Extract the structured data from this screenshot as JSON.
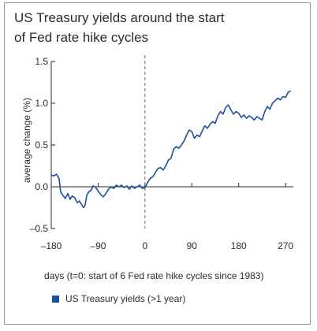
{
  "chart_data": {
    "type": "line",
    "title_lines": [
      "US Treasury yields around the start",
      "of Fed rate hike cycles"
    ],
    "xlabel": "days (t=0: start of 6 Fed rate hike cycles since 1983)",
    "ylabel": "average change (%)",
    "xlim": [
      -180,
      285
    ],
    "ylim": [
      -0.5,
      1.5
    ],
    "x_ticks": [
      -180,
      -90,
      0,
      90,
      180,
      270
    ],
    "x_tick_labels": [
      "–180",
      "–90",
      "0",
      "90",
      "180",
      "270"
    ],
    "y_ticks": [
      1.5,
      1.0,
      0.5,
      0.0,
      -0.5
    ],
    "y_tick_labels": [
      "1.5",
      "1.0",
      "0.5",
      "0.0",
      "–0.5"
    ],
    "legend_position": "bottom-left",
    "reference_line_x": 0,
    "series": [
      {
        "name": "US Treasury yields (>1 year)",
        "color": "#1f4e9a",
        "points": [
          [
            -180,
            0.14
          ],
          [
            -175,
            0.13
          ],
          [
            -170,
            0.15
          ],
          [
            -165,
            0.1
          ],
          [
            -162,
            -0.06
          ],
          [
            -158,
            -0.1
          ],
          [
            -153,
            -0.14
          ],
          [
            -148,
            -0.08
          ],
          [
            -144,
            -0.15
          ],
          [
            -140,
            -0.11
          ],
          [
            -135,
            -0.13
          ],
          [
            -130,
            -0.19
          ],
          [
            -126,
            -0.17
          ],
          [
            -122,
            -0.21
          ],
          [
            -118,
            -0.25
          ],
          [
            -115,
            -0.22
          ],
          [
            -112,
            -0.11
          ],
          [
            -108,
            -0.06
          ],
          [
            -103,
            -0.04
          ],
          [
            -100,
            0.01
          ],
          [
            -96,
            0.0
          ],
          [
            -92,
            -0.03
          ],
          [
            -88,
            -0.07
          ],
          [
            -84,
            -0.1
          ],
          [
            -80,
            -0.12
          ],
          [
            -75,
            -0.08
          ],
          [
            -70,
            -0.03
          ],
          [
            -65,
            0.0
          ],
          [
            -60,
            -0.02
          ],
          [
            -55,
            0.02
          ],
          [
            -50,
            0.0
          ],
          [
            -45,
            0.02
          ],
          [
            -40,
            -0.01
          ],
          [
            -35,
            0.01
          ],
          [
            -30,
            -0.03
          ],
          [
            -25,
            0.01
          ],
          [
            -20,
            -0.02
          ],
          [
            -15,
            0.0
          ],
          [
            -10,
            0.02
          ],
          [
            -5,
            -0.02
          ],
          [
            0,
            -0.01
          ],
          [
            5,
            0.05
          ],
          [
            10,
            0.1
          ],
          [
            15,
            0.12
          ],
          [
            20,
            0.17
          ],
          [
            25,
            0.22
          ],
          [
            30,
            0.23
          ],
          [
            35,
            0.2
          ],
          [
            40,
            0.25
          ],
          [
            45,
            0.32
          ],
          [
            50,
            0.34
          ],
          [
            55,
            0.45
          ],
          [
            60,
            0.48
          ],
          [
            65,
            0.46
          ],
          [
            70,
            0.5
          ],
          [
            75,
            0.55
          ],
          [
            80,
            0.62
          ],
          [
            85,
            0.68
          ],
          [
            90,
            0.66
          ],
          [
            95,
            0.58
          ],
          [
            100,
            0.62
          ],
          [
            105,
            0.6
          ],
          [
            110,
            0.67
          ],
          [
            115,
            0.73
          ],
          [
            120,
            0.7
          ],
          [
            125,
            0.75
          ],
          [
            130,
            0.78
          ],
          [
            135,
            0.76
          ],
          [
            140,
            0.85
          ],
          [
            145,
            0.9
          ],
          [
            150,
            0.87
          ],
          [
            155,
            0.95
          ],
          [
            160,
            0.98
          ],
          [
            165,
            0.92
          ],
          [
            170,
            0.87
          ],
          [
            175,
            0.9
          ],
          [
            180,
            0.88
          ],
          [
            185,
            0.83
          ],
          [
            190,
            0.86
          ],
          [
            195,
            0.82
          ],
          [
            200,
            0.85
          ],
          [
            205,
            0.83
          ],
          [
            210,
            0.8
          ],
          [
            215,
            0.84
          ],
          [
            220,
            0.82
          ],
          [
            225,
            0.8
          ],
          [
            230,
            0.9
          ],
          [
            235,
            0.96
          ],
          [
            240,
            0.93
          ],
          [
            245,
            1.0
          ],
          [
            250,
            1.03
          ],
          [
            255,
            1.06
          ],
          [
            260,
            1.04
          ],
          [
            265,
            1.08
          ],
          [
            270,
            1.07
          ],
          [
            275,
            1.13
          ],
          [
            280,
            1.15
          ]
        ]
      }
    ]
  }
}
